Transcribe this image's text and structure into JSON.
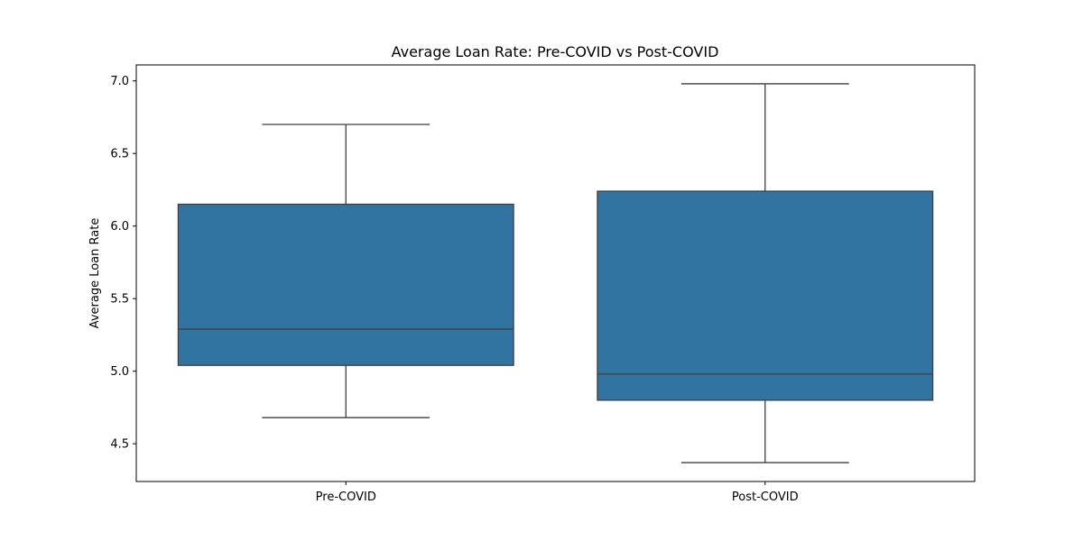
{
  "chart_data": {
    "type": "box",
    "title": "Average Loan Rate: Pre-COVID vs Post-COVID",
    "xlabel": "",
    "ylabel": "Average Loan Rate",
    "ylim": [
      4.24,
      7.11
    ],
    "yticks": [
      "4.5",
      "5.0",
      "5.5",
      "6.0",
      "6.5",
      "7.0"
    ],
    "grid": false,
    "categories": [
      "Pre-COVID",
      "Post-COVID"
    ],
    "boxes": [
      {
        "category": "Pre-COVID",
        "whisker_low": 4.68,
        "q1": 5.04,
        "median": 5.29,
        "q3": 6.15,
        "whisker_high": 6.7
      },
      {
        "category": "Post-COVID",
        "whisker_low": 4.37,
        "q1": 4.8,
        "median": 4.98,
        "q3": 6.24,
        "whisker_high": 6.98
      }
    ],
    "colors": {
      "box_fill": "#3274a1",
      "line": "#3f3f3f",
      "axis": "#000000"
    }
  }
}
